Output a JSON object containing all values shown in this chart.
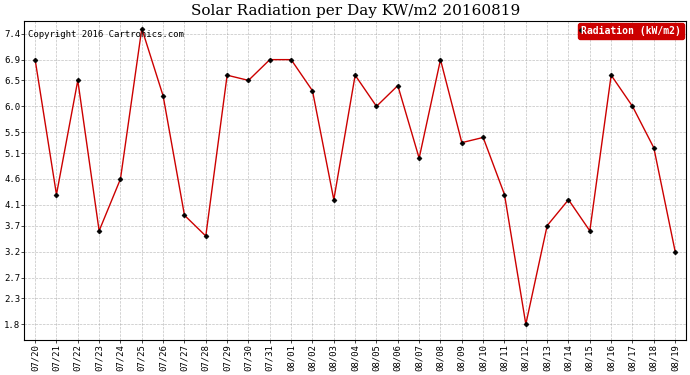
{
  "title": "Solar Radiation per Day KW/m2 20160819",
  "copyright": "Copyright 2016 Cartronics.com",
  "legend_label": "Radiation (kW/m2)",
  "dates": [
    "07/20",
    "07/21",
    "07/22",
    "07/23",
    "07/24",
    "07/25",
    "07/26",
    "07/27",
    "07/28",
    "07/29",
    "07/30",
    "07/31",
    "08/01",
    "08/02",
    "08/03",
    "08/04",
    "08/05",
    "08/06",
    "08/07",
    "08/08",
    "08/09",
    "08/10",
    "08/11",
    "08/12",
    "08/13",
    "08/14",
    "08/15",
    "08/16",
    "08/17",
    "08/18",
    "08/19"
  ],
  "values": [
    6.9,
    4.3,
    6.5,
    3.6,
    4.6,
    7.5,
    6.2,
    3.9,
    3.5,
    6.6,
    6.5,
    6.9,
    6.9,
    6.3,
    4.2,
    6.6,
    6.0,
    6.4,
    5.0,
    6.9,
    5.3,
    5.4,
    4.3,
    1.8,
    3.7,
    4.2,
    3.6,
    6.6,
    6.0,
    5.2,
    3.2
  ],
  "line_color": "#cc0000",
  "marker": "D",
  "marker_size": 2.5,
  "marker_color": "#000000",
  "bg_color": "#ffffff",
  "plot_bg_color": "#ffffff",
  "grid_color": "#999999",
  "yticks": [
    1.8,
    2.3,
    2.7,
    3.2,
    3.7,
    4.1,
    4.6,
    5.1,
    5.5,
    6.0,
    6.5,
    6.9,
    7.4
  ],
  "ylim": [
    1.5,
    7.65
  ],
  "legend_bg": "#cc0000",
  "legend_text_color": "#ffffff",
  "title_fontsize": 11,
  "copyright_fontsize": 6.5,
  "tick_fontsize": 6.5,
  "legend_fontsize": 7
}
